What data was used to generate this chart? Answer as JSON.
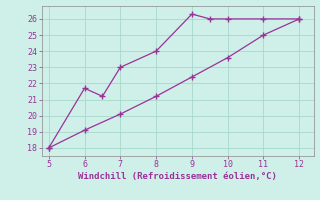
{
  "line1_x": [
    5,
    6,
    6.5,
    7,
    8,
    9,
    9.5,
    10,
    11,
    12
  ],
  "line1_y": [
    18,
    21.7,
    21.2,
    23.0,
    24.0,
    26.3,
    26.0,
    26.0,
    26.0,
    26.0
  ],
  "line2_x": [
    5,
    6,
    7,
    8,
    9,
    10,
    11,
    12
  ],
  "line2_y": [
    18.0,
    19.1,
    20.1,
    21.2,
    22.4,
    23.6,
    25.0,
    26.0
  ],
  "line_color": "#993399",
  "marker": "+",
  "markersize": 4,
  "linewidth": 0.9,
  "xlabel": "Windchill (Refroidissement éolien,°C)",
  "xlabel_fontsize": 6.5,
  "xlim": [
    4.8,
    12.4
  ],
  "ylim": [
    17.5,
    26.8
  ],
  "xticks": [
    5,
    6,
    7,
    8,
    9,
    10,
    11,
    12
  ],
  "yticks": [
    18,
    19,
    20,
    21,
    22,
    23,
    24,
    25,
    26
  ],
  "tick_fontsize": 6,
  "background_color": "#cff0e8",
  "grid_color": "#a8d8cc",
  "axes_color": "#993399",
  "spine_color": "#888888"
}
